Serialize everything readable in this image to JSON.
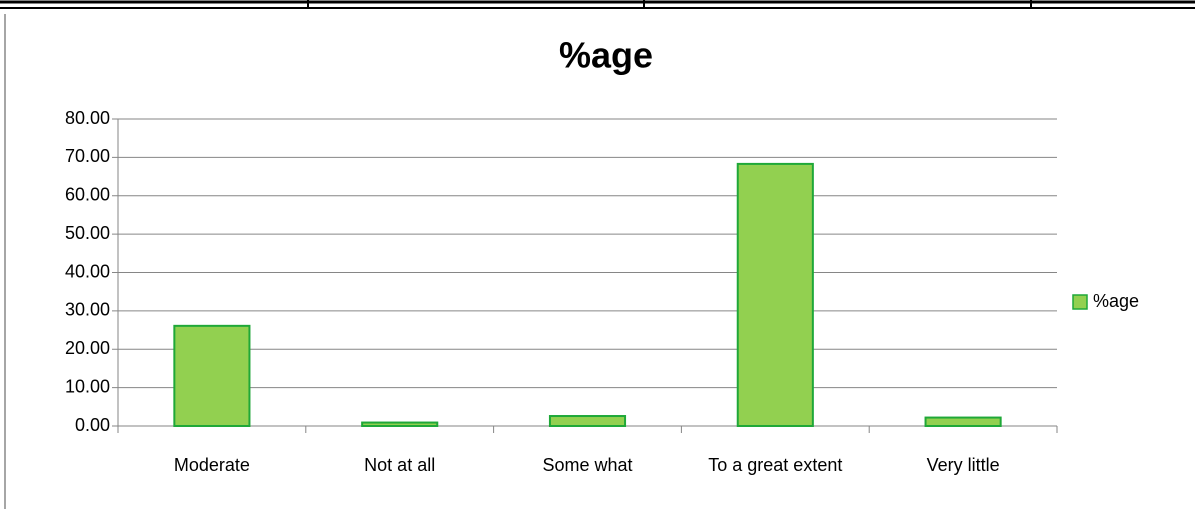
{
  "chart_data": {
    "type": "bar",
    "title": "%age",
    "categories": [
      "Moderate",
      "Not at all",
      "Some what",
      "To a great extent",
      "Very little"
    ],
    "series": [
      {
        "name": "%age",
        "color": "#92d050",
        "values": [
          26.1,
          0.9,
          2.6,
          68.3,
          2.2
        ]
      }
    ],
    "ylim": [
      0,
      80
    ],
    "yticks": [
      {
        "value": 0,
        "label": "0.00"
      },
      {
        "value": 10,
        "label": "10.00"
      },
      {
        "value": 20,
        "label": "20.00"
      },
      {
        "value": 30,
        "label": "30.00"
      },
      {
        "value": 40,
        "label": "40.00"
      },
      {
        "value": 50,
        "label": "50.00"
      },
      {
        "value": 60,
        "label": "60.00"
      },
      {
        "value": 70,
        "label": "70.00"
      },
      {
        "value": 80,
        "label": "80.00"
      }
    ],
    "grid": true,
    "legend": "right"
  }
}
